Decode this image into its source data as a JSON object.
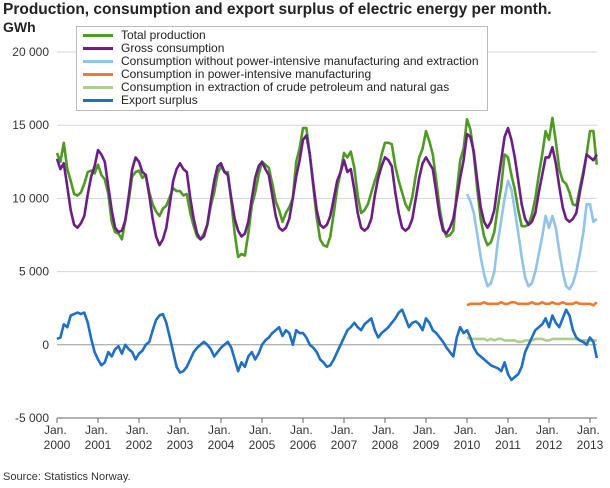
{
  "chart_data": {
    "type": "line",
    "title": "Production, consumption and export surplus of electric energy per month.",
    "y_label": "GWh",
    "source": "Source: Statistics Norway.",
    "grid": true,
    "legend": "top-left",
    "ylim": [
      -5000,
      20000
    ],
    "yticks": [
      {
        "value": -5000,
        "label": "-5 000"
      },
      0,
      {
        "value": 5000,
        "label": "5 000"
      },
      {
        "value": 10000,
        "label": "10 000"
      },
      {
        "value": 15000,
        "label": "15 000"
      },
      {
        "value": 20000,
        "label": "20 000"
      }
    ],
    "categories": [
      "Jan. 2000",
      null,
      null,
      null,
      null,
      null,
      null,
      null,
      null,
      null,
      null,
      null,
      "Jan. 2001",
      null,
      null,
      null,
      null,
      null,
      null,
      null,
      null,
      null,
      null,
      null,
      "Jan. 2002",
      null,
      null,
      null,
      null,
      null,
      null,
      null,
      null,
      null,
      null,
      null,
      "Jan. 2003",
      null,
      null,
      null,
      null,
      null,
      null,
      null,
      null,
      null,
      null,
      null,
      "Jan. 2004",
      null,
      null,
      null,
      null,
      null,
      null,
      null,
      null,
      null,
      null,
      null,
      "Jan. 2005",
      null,
      null,
      null,
      null,
      null,
      null,
      null,
      null,
      null,
      null,
      null,
      "Jan. 2006",
      null,
      null,
      null,
      null,
      null,
      null,
      null,
      null,
      null,
      null,
      null,
      "Jan. 2007",
      null,
      null,
      null,
      null,
      null,
      null,
      null,
      null,
      null,
      null,
      null,
      "Jan. 2008",
      null,
      null,
      null,
      null,
      null,
      null,
      null,
      null,
      null,
      null,
      null,
      "Jan. 2009",
      null,
      null,
      null,
      null,
      null,
      null,
      null,
      null,
      null,
      null,
      null,
      "Jan. 2010",
      null,
      null,
      null,
      null,
      null,
      null,
      null,
      null,
      null,
      null,
      null,
      "Jan. 2011",
      null,
      null,
      null,
      null,
      null,
      null,
      null,
      null,
      null,
      null,
      null,
      "Jan. 2012",
      null,
      null,
      null,
      null,
      null,
      null,
      null,
      null,
      null,
      null,
      null,
      "Jan. 2013",
      null,
      null
    ],
    "series": [
      {
        "name": "Total production",
        "color": "#4e9a22",
        "values": [
          13100,
          12500,
          13800,
          12000,
          11200,
          10300,
          10200,
          10400,
          11000,
          11800,
          11900,
          11700,
          12300,
          11600,
          11300,
          10300,
          8400,
          7700,
          7600,
          7200,
          8500,
          9900,
          11500,
          11800,
          11900,
          11400,
          11600,
          10400,
          9600,
          9100,
          8800,
          9300,
          9500,
          10100,
          10700,
          10500,
          10500,
          10200,
          10300,
          9000,
          8100,
          7400,
          7200,
          7600,
          8200,
          9500,
          10400,
          11700,
          12200,
          11800,
          11800,
          9800,
          7600,
          6000,
          6200,
          6100,
          7600,
          9500,
          10400,
          11600,
          12500,
          12300,
          12100,
          11000,
          9800,
          9200,
          8400,
          9000,
          9400,
          10000,
          12500,
          13400,
          14800,
          14800,
          13000,
          10800,
          8700,
          7200,
          6800,
          6700,
          7400,
          9000,
          10700,
          11800,
          13100,
          12800,
          13200,
          12100,
          10200,
          9000,
          9200,
          9600,
          10400,
          11200,
          11900,
          13000,
          13800,
          13800,
          13700,
          12200,
          11200,
          10400,
          9600,
          9200,
          10100,
          11600,
          12800,
          13400,
          14600,
          13900,
          13000,
          11200,
          9300,
          8000,
          7400,
          7500,
          7800,
          10500,
          12600,
          13400,
          15400,
          14700,
          13000,
          10600,
          8600,
          7400,
          6800,
          7000,
          7700,
          9400,
          10800,
          13000,
          12800,
          11600,
          10600,
          9200,
          8100,
          8100,
          8200,
          8900,
          10000,
          11600,
          13000,
          14600,
          14000,
          15500,
          13900,
          12000,
          11200,
          11000,
          10400,
          9600,
          9500,
          10700,
          11800,
          13000,
          14600,
          14600,
          12300
        ]
      },
      {
        "name": "Gross consumption",
        "color": "#6b1f86",
        "values": [
          12700,
          12000,
          12400,
          10800,
          9200,
          8200,
          8000,
          8300,
          8800,
          10300,
          11500,
          12200,
          13300,
          13000,
          12500,
          10800,
          9200,
          8000,
          7700,
          7800,
          8500,
          10200,
          12000,
          12800,
          12500,
          11800,
          11600,
          10200,
          8600,
          7400,
          6800,
          7200,
          8000,
          9600,
          11200,
          12000,
          12400,
          12000,
          11800,
          10000,
          8600,
          7600,
          7200,
          7400,
          8200,
          9800,
          11200,
          12200,
          12400,
          11800,
          11600,
          10000,
          8600,
          7800,
          7400,
          7600,
          8400,
          10000,
          11400,
          12200,
          12500,
          12000,
          11600,
          10200,
          8800,
          8000,
          7800,
          8000,
          8600,
          10000,
          11500,
          12600,
          14000,
          14300,
          13000,
          11000,
          9200,
          8200,
          8000,
          8200,
          8800,
          10000,
          11200,
          11800,
          12600,
          11800,
          12000,
          10600,
          9000,
          8000,
          7800,
          8000,
          8600,
          10200,
          11400,
          12200,
          12800,
          12600,
          12200,
          10400,
          9000,
          8000,
          7800,
          8000,
          8600,
          10000,
          11400,
          12400,
          12800,
          12400,
          12000,
          10400,
          8800,
          7800,
          7600,
          8000,
          8600,
          10000,
          11400,
          12600,
          14400,
          14200,
          13200,
          11200,
          9400,
          8400,
          8000,
          8400,
          9200,
          11000,
          12600,
          14200,
          14800,
          14000,
          12800,
          11200,
          9600,
          8600,
          8200,
          8400,
          9000,
          10400,
          11600,
          12800,
          12800,
          13500,
          12400,
          10800,
          9400,
          8600,
          8400,
          8600,
          9000,
          10400,
          11600,
          13000,
          12800,
          12600,
          13000
        ]
      },
      {
        "name": "Consumption without power-intensive manufacturing and extraction",
        "color": "#92c3ea",
        "values": [
          null,
          null,
          null,
          null,
          null,
          null,
          null,
          null,
          null,
          null,
          null,
          null,
          null,
          null,
          null,
          null,
          null,
          null,
          null,
          null,
          null,
          null,
          null,
          null,
          null,
          null,
          null,
          null,
          null,
          null,
          null,
          null,
          null,
          null,
          null,
          null,
          null,
          null,
          null,
          null,
          null,
          null,
          null,
          null,
          null,
          null,
          null,
          null,
          null,
          null,
          null,
          null,
          null,
          null,
          null,
          null,
          null,
          null,
          null,
          null,
          null,
          null,
          null,
          null,
          null,
          null,
          null,
          null,
          null,
          null,
          null,
          null,
          null,
          null,
          null,
          null,
          null,
          null,
          null,
          null,
          null,
          null,
          null,
          null,
          null,
          null,
          null,
          null,
          null,
          null,
          null,
          null,
          null,
          null,
          null,
          null,
          null,
          null,
          null,
          null,
          null,
          null,
          null,
          null,
          null,
          null,
          null,
          null,
          null,
          null,
          null,
          null,
          null,
          null,
          null,
          null,
          null,
          null,
          null,
          null,
          10300,
          9800,
          9000,
          7500,
          6000,
          4800,
          4000,
          4200,
          5000,
          7000,
          8500,
          10000,
          11200,
          10600,
          9200,
          7600,
          6000,
          4600,
          4000,
          4200,
          5000,
          6200,
          7400,
          8800,
          8000,
          8800,
          8000,
          6400,
          5000,
          4000,
          3800,
          4200,
          5000,
          6200,
          7600,
          9600,
          9600,
          8400,
          8600
        ]
      },
      {
        "name": "Consumption in power-intensive manufacturing",
        "color": "#ee7b2c",
        "values": [
          null,
          null,
          null,
          null,
          null,
          null,
          null,
          null,
          null,
          null,
          null,
          null,
          null,
          null,
          null,
          null,
          null,
          null,
          null,
          null,
          null,
          null,
          null,
          null,
          null,
          null,
          null,
          null,
          null,
          null,
          null,
          null,
          null,
          null,
          null,
          null,
          null,
          null,
          null,
          null,
          null,
          null,
          null,
          null,
          null,
          null,
          null,
          null,
          null,
          null,
          null,
          null,
          null,
          null,
          null,
          null,
          null,
          null,
          null,
          null,
          null,
          null,
          null,
          null,
          null,
          null,
          null,
          null,
          null,
          null,
          null,
          null,
          null,
          null,
          null,
          null,
          null,
          null,
          null,
          null,
          null,
          null,
          null,
          null,
          null,
          null,
          null,
          null,
          null,
          null,
          null,
          null,
          null,
          null,
          null,
          null,
          null,
          null,
          null,
          null,
          null,
          null,
          null,
          null,
          null,
          null,
          null,
          null,
          null,
          null,
          null,
          null,
          null,
          null,
          null,
          null,
          null,
          null,
          null,
          null,
          2700,
          2800,
          2800,
          2800,
          2800,
          2900,
          2800,
          2800,
          2800,
          2800,
          2900,
          2800,
          2800,
          2900,
          2900,
          2800,
          2800,
          2800,
          2800,
          2900,
          2800,
          2800,
          2900,
          2800,
          2800,
          2900,
          2800,
          2800,
          2900,
          2800,
          2800,
          2800,
          2900,
          2800,
          2800,
          2800,
          2800,
          2700,
          2900
        ]
      },
      {
        "name": "Consumption in extraction of crude petroleum and natural gas",
        "color": "#a9d08e",
        "values": [
          null,
          null,
          null,
          null,
          null,
          null,
          null,
          null,
          null,
          null,
          null,
          null,
          null,
          null,
          null,
          null,
          null,
          null,
          null,
          null,
          null,
          null,
          null,
          null,
          null,
          null,
          null,
          null,
          null,
          null,
          null,
          null,
          null,
          null,
          null,
          null,
          null,
          null,
          null,
          null,
          null,
          null,
          null,
          null,
          null,
          null,
          null,
          null,
          null,
          null,
          null,
          null,
          null,
          null,
          null,
          null,
          null,
          null,
          null,
          null,
          null,
          null,
          null,
          null,
          null,
          null,
          null,
          null,
          null,
          null,
          null,
          null,
          null,
          null,
          null,
          null,
          null,
          null,
          null,
          null,
          null,
          null,
          null,
          null,
          null,
          null,
          null,
          null,
          null,
          null,
          null,
          null,
          null,
          null,
          null,
          null,
          null,
          null,
          null,
          null,
          null,
          null,
          null,
          null,
          null,
          null,
          null,
          null,
          null,
          null,
          null,
          null,
          null,
          null,
          null,
          null,
          null,
          null,
          null,
          null,
          500,
          400,
          400,
          400,
          400,
          400,
          300,
          400,
          300,
          400,
          400,
          300,
          300,
          300,
          300,
          200,
          200,
          300,
          300,
          300,
          400,
          400,
          400,
          300,
          300,
          400,
          400,
          400,
          400,
          400,
          400,
          400,
          400,
          300,
          300,
          300,
          300,
          300,
          300
        ]
      },
      {
        "name": "Export surplus",
        "color": "#1f6fc2",
        "values": [
          400,
          500,
          1400,
          1200,
          2000,
          2100,
          2200,
          2100,
          2200,
          1500,
          400,
          -500,
          -1000,
          -1400,
          -1200,
          -500,
          -800,
          -300,
          -100,
          -600,
          0,
          -300,
          -500,
          -1000,
          -600,
          -400,
          0,
          200,
          1000,
          1700,
          2000,
          2100,
          1500,
          500,
          -500,
          -1500,
          -1900,
          -1800,
          -1500,
          -1000,
          -500,
          -200,
          0,
          200,
          0,
          -300,
          -800,
          -500,
          -200,
          0,
          200,
          -200,
          -1000,
          -1800,
          -1200,
          -1500,
          -800,
          -500,
          -1000,
          -600,
          0,
          300,
          500,
          800,
          1000,
          1200,
          600,
          1000,
          800,
          0,
          1000,
          800,
          800,
          500,
          0,
          -200,
          -500,
          -1000,
          -1200,
          -1500,
          -1400,
          -1000,
          -500,
          0,
          500,
          1000,
          1200,
          1500,
          1200,
          1000,
          1400,
          1600,
          1800,
          1000,
          500,
          800,
          1000,
          1200,
          1500,
          1800,
          2200,
          2400,
          1800,
          1200,
          1500,
          1600,
          1400,
          1000,
          1800,
          1500,
          1000,
          800,
          500,
          200,
          -200,
          -500,
          -800,
          500,
          1200,
          800,
          1000,
          500,
          -200,
          -600,
          -800,
          -1000,
          -1200,
          -1400,
          -1500,
          -1600,
          -1800,
          -1200,
          -2000,
          -2400,
          -2200,
          -2000,
          -1500,
          -500,
          0,
          500,
          1000,
          1200,
          1400,
          1800,
          1200,
          2000,
          1500,
          1200,
          1800,
          2400,
          2000,
          1000,
          500,
          300,
          200,
          0,
          500,
          200,
          -900
        ]
      }
    ]
  }
}
